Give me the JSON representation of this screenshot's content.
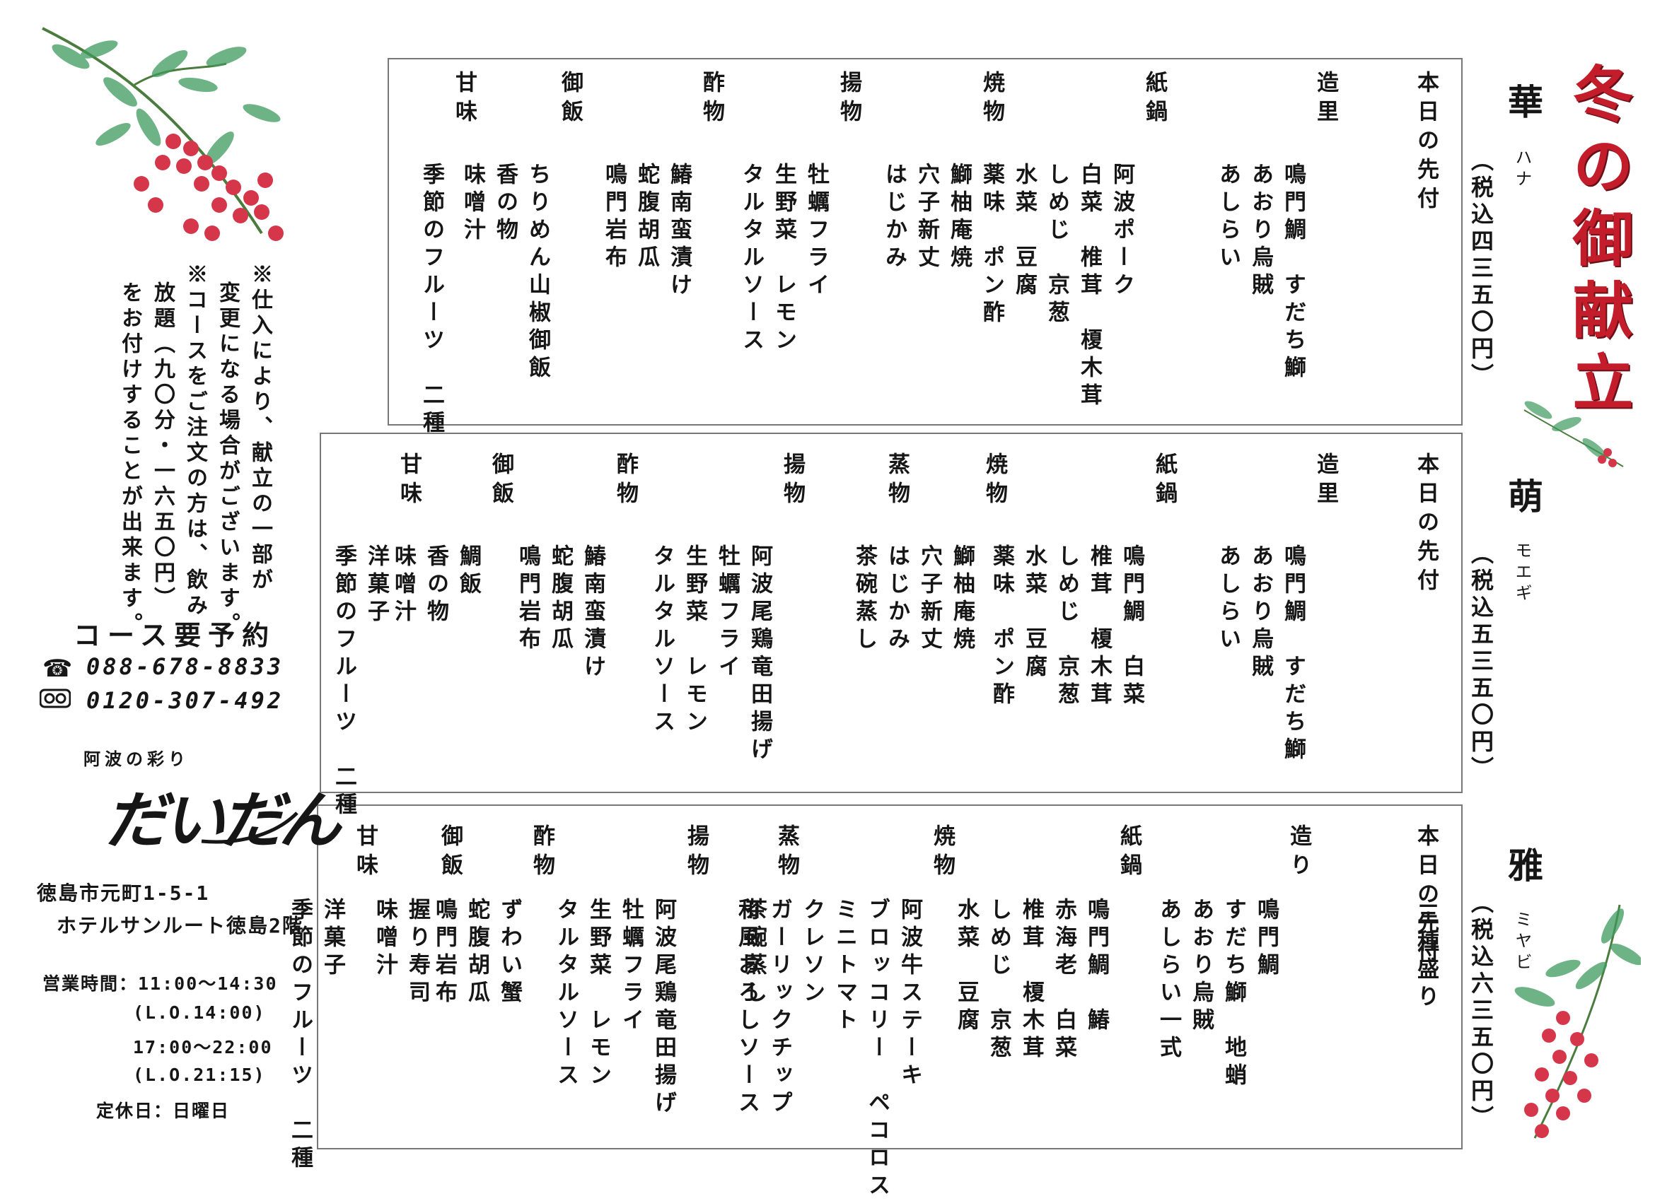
{
  "title": "冬の御献立",
  "courses": [
    {
      "name": "華",
      "kana": "ハナ",
      "price": "（税込四三五〇円）",
      "items": [
        {
          "cat": "本日の先付",
          "lines": []
        },
        {
          "cat": "造里",
          "lines": [
            "鳴門鯛　すだち鰤",
            "あおり烏賊",
            "あしらい"
          ]
        },
        {
          "cat": "紙鍋",
          "lines": [
            "阿波ポーク",
            "白菜　椎茸　榎木茸",
            "しめじ　京葱",
            "水菜　豆腐",
            "薬味　ポン酢"
          ]
        },
        {
          "cat": "焼物",
          "lines": [
            "鰤柚庵焼",
            "穴子新丈",
            "はじかみ"
          ]
        },
        {
          "cat": "揚物",
          "lines": [
            "牡蠣フライ",
            "生野菜　レモン",
            "タルタルソース"
          ]
        },
        {
          "cat": "酢物",
          "lines": [
            "鰆南蛮漬け",
            "蛇腹胡瓜",
            "鳴門岩布"
          ]
        },
        {
          "cat": "御飯",
          "lines": [
            "ちりめん山椒御飯",
            "香の物",
            "味噌汁"
          ]
        },
        {
          "cat": "甘味",
          "lines": [
            "季節のフルーツ　二種"
          ]
        }
      ]
    },
    {
      "name": "萌",
      "kana": "モエギ",
      "price": "（税込五三五〇円）",
      "items": [
        {
          "cat": "本日の先付",
          "lines": []
        },
        {
          "cat": "造里",
          "lines": [
            "鳴門鯛　すだち鰤",
            "あおり烏賊",
            "あしらい"
          ]
        },
        {
          "cat": "紙鍋",
          "lines": [
            "鳴門鯛　白菜",
            "椎茸　榎木茸",
            "しめじ　京葱",
            "水菜　豆腐",
            "薬味　ポン酢"
          ]
        },
        {
          "cat": "焼物",
          "lines": [
            "鰤柚庵焼",
            "穴子新丈",
            "はじかみ"
          ]
        },
        {
          "cat": "蒸物",
          "lines": [
            "茶碗蒸し"
          ]
        },
        {
          "cat": "揚物",
          "lines": [
            "阿波尾鶏竜田揚げ",
            "牡蠣フライ",
            "生野菜　レモン",
            "タルタルソース"
          ]
        },
        {
          "cat": "酢物",
          "lines": [
            "鰆南蛮漬け",
            "蛇腹胡瓜",
            "鳴門岩布"
          ]
        },
        {
          "cat": "御飯",
          "lines": [
            "鯛飯",
            "香の物",
            "味噌汁"
          ]
        },
        {
          "cat": "甘味",
          "lines": [
            "洋菓子",
            "季節のフルーツ　二種"
          ]
        }
      ]
    },
    {
      "name": "雅",
      "kana": "ミヤビ",
      "price": "（税込六三五〇円）",
      "items": [
        {
          "cat": "本日の先付",
          "lines": [
            "三種盛り"
          ]
        },
        {
          "cat": "造り",
          "lines": [
            "鳴門鯛",
            "すだち鰤　地蛸",
            "あおり烏賊",
            "あしらい一式"
          ]
        },
        {
          "cat": "紙鍋",
          "lines": [
            "鳴門鯛　鰆",
            "赤海老　白菜",
            "椎茸　榎木茸",
            "しめじ　京葱",
            "水菜　豆腐"
          ]
        },
        {
          "cat": "焼物",
          "lines": [
            "阿波牛ステーキ",
            "ブロッコリー　ペコロス",
            "ミニトマト",
            "クレソン",
            "ガーリックチップ",
            "和風おろしソース"
          ]
        },
        {
          "cat": "蒸物",
          "lines": [
            "茶碗蒸し"
          ]
        },
        {
          "cat": "揚物",
          "lines": [
            "阿波尾鶏竜田揚げ",
            "牡蠣フライ",
            "生野菜　レモン",
            "タルタルソース"
          ]
        },
        {
          "cat": "酢物",
          "lines": [
            "ずわい蟹",
            "蛇腹胡瓜",
            "鳴門岩布"
          ]
        },
        {
          "cat": "御飯",
          "lines": [
            "握り寿司",
            "味噌汁"
          ]
        },
        {
          "cat": "甘味",
          "lines": [
            "洋菓子",
            "季節のフルーツ　二種"
          ]
        }
      ]
    }
  ],
  "notes": [
    "※仕入により、献立の一部が",
    "変更になる場合がございます。",
    "※コースをご注文の方は、飲み",
    "放題（九〇分・一六五〇円）",
    "をお付けすることが出来ます。"
  ],
  "reservation": "コース要予約",
  "phones": [
    "088-678-8833",
    "0120-307-492"
  ],
  "phone_icons": [
    "telephone-icon",
    "freedial-icon"
  ],
  "logo_sub": "阿波の彩り",
  "logo": "だいだん",
  "address": [
    "徳島市元町1-5-1",
    "ホテルサンルート徳島2階"
  ],
  "hours": [
    "営業時間：11:00～14:30",
    "(L.O.14:00)",
    "17:00～22:00",
    "(L.O.21:15)",
    "定休日：日曜日"
  ],
  "colors": {
    "title": "#c31d2b",
    "berry": "#d6364a",
    "leaf": "#3e9a5d"
  }
}
